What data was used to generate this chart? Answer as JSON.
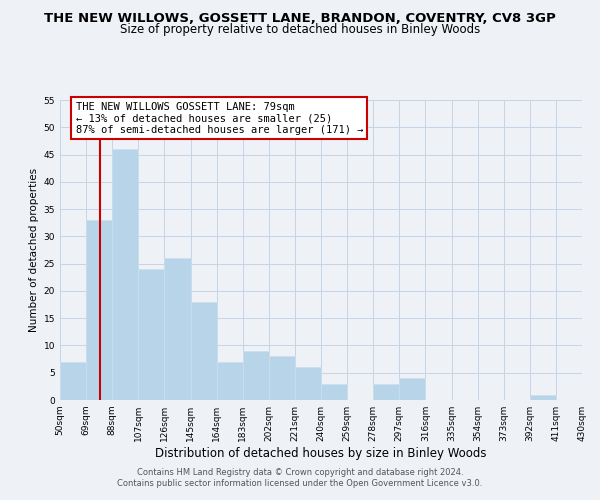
{
  "title": "THE NEW WILLOWS, GOSSETT LANE, BRANDON, COVENTRY, CV8 3GP",
  "subtitle": "Size of property relative to detached houses in Binley Woods",
  "xlabel": "Distribution of detached houses by size in Binley Woods",
  "ylabel": "Number of detached properties",
  "bin_edges": [
    50,
    69,
    88,
    107,
    126,
    145,
    164,
    183,
    202,
    221,
    240,
    259,
    278,
    297,
    316,
    335,
    354,
    373,
    392,
    411,
    430
  ],
  "counts": [
    7,
    33,
    46,
    24,
    26,
    18,
    7,
    9,
    8,
    6,
    3,
    0,
    3,
    4,
    0,
    0,
    0,
    0,
    1,
    0
  ],
  "bar_color": "#b8d4e8",
  "bar_edge_color": "#cde0ee",
  "reference_line_x": 79,
  "reference_line_color": "#cc0000",
  "ylim": [
    0,
    55
  ],
  "yticks": [
    0,
    5,
    10,
    15,
    20,
    25,
    30,
    35,
    40,
    45,
    50,
    55
  ],
  "tick_labels": [
    "50sqm",
    "69sqm",
    "88sqm",
    "107sqm",
    "126sqm",
    "145sqm",
    "164sqm",
    "183sqm",
    "202sqm",
    "221sqm",
    "240sqm",
    "259sqm",
    "278sqm",
    "297sqm",
    "316sqm",
    "335sqm",
    "354sqm",
    "373sqm",
    "392sqm",
    "411sqm",
    "430sqm"
  ],
  "annotation_title": "THE NEW WILLOWS GOSSETT LANE: 79sqm",
  "annotation_line1": "← 13% of detached houses are smaller (25)",
  "annotation_line2": "87% of semi-detached houses are larger (171) →",
  "footer_line1": "Contains HM Land Registry data © Crown copyright and database right 2024.",
  "footer_line2": "Contains public sector information licensed under the Open Government Licence v3.0.",
  "bg_color": "#eef2f7",
  "grid_color": "#c5d5e5",
  "title_fontsize": 9.5,
  "subtitle_fontsize": 8.5,
  "xlabel_fontsize": 8.5,
  "ylabel_fontsize": 7.5,
  "tick_fontsize": 6.5,
  "annotation_fontsize": 7.5,
  "annotation_box_color": "#ffffff",
  "annotation_box_edge": "#cc0000",
  "footer_fontsize": 6.0,
  "footer_color": "#555555"
}
